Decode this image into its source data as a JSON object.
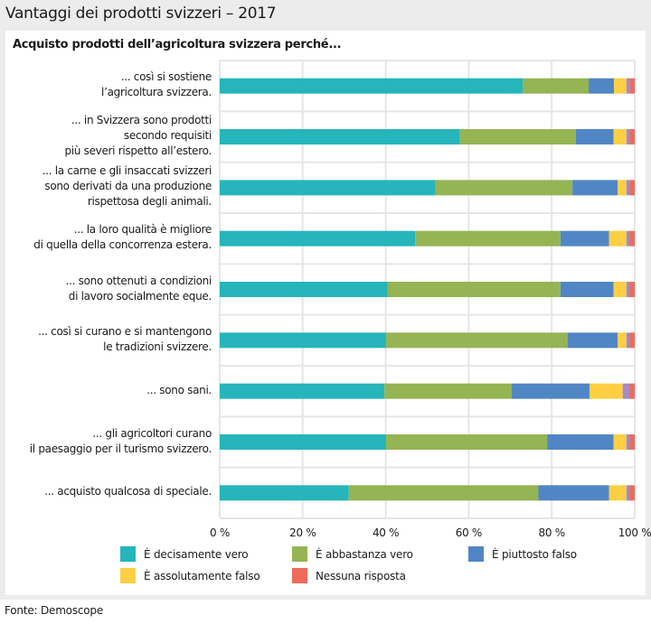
{
  "header": {
    "title": "Vantaggi dei prodotti svizzeri – 2017",
    "subtitle": "Acquisto prodotti dell’agricoltura svizzera perché..."
  },
  "footer": {
    "source": "Fonte: Demoscope"
  },
  "colors": {
    "background": "#ececec",
    "panel": "#ffffff",
    "gridline": "#e6e6e6"
  },
  "chart_data": {
    "type": "bar",
    "orientation": "horizontal",
    "stacked": true,
    "title": "Vantaggi dei prodotti svizzeri – 2017",
    "subtitle": "Acquisto prodotti dell’agricoltura svizzera perché...",
    "xlabel": "",
    "ylabel": "",
    "xlim": [
      0,
      100
    ],
    "xunit": "%",
    "xticks": [
      "0 %",
      "20 %",
      "40 %",
      "60 %",
      "80 %",
      "100 %"
    ],
    "grid": true,
    "legend_position": "bottom",
    "categories": [
      "... così si sostiene\nl’agricoltura svizzera.",
      "... in Svizzera sono prodotti\nsecondo requisiti\npiù severi rispetto all’estero.",
      "... la carne e gli insaccati svizzeri\nsono derivati da una produzione\nrispettosa degli animali.",
      "... la loro qualità è migliore\ndi quella della concorrenza estera.",
      "... sono ottenuti a condizioni\ndi lavoro socialmente eque.",
      "... così si curano e si mantengono\nle tradizioni svizzere.",
      "... sono sani.",
      "... gli agricoltori curano\nil paesaggio per il turismo svizzero.",
      "... acquisto qualcosa di speciale."
    ],
    "series": [
      {
        "name": "È decisamente vero",
        "color": "#26b5ba",
        "in_legend": true,
        "values": [
          73.0,
          57.9,
          52.0,
          47.1,
          40.5,
          40.1,
          39.7,
          40.1,
          31.1
        ]
      },
      {
        "name": "È abbastanza vero",
        "color": "#95b453",
        "in_legend": true,
        "values": [
          15.9,
          27.9,
          33.0,
          35.0,
          41.6,
          43.7,
          30.6,
          38.8,
          45.7
        ]
      },
      {
        "name": "È piuttosto falso",
        "color": "#5186c5",
        "in_legend": true,
        "values": [
          6.1,
          9.1,
          10.9,
          11.7,
          12.8,
          12.1,
          18.8,
          16.0,
          17.0
        ]
      },
      {
        "name": "È assolutamente falso",
        "color": "#fecf44",
        "in_legend": true,
        "values": [
          3.0,
          3.1,
          2.1,
          4.2,
          3.1,
          2.1,
          8.0,
          3.1,
          4.2
        ]
      },
      {
        "name": "",
        "color": "#a68bc6",
        "in_legend": false,
        "values": [
          0.9,
          0.8,
          0.8,
          0.8,
          0.8,
          0.8,
          1.7,
          0.8,
          0.8
        ]
      },
      {
        "name": "Nessuna risposta",
        "color": "#ee6b5c",
        "in_legend": true,
        "values": [
          1.1,
          1.2,
          1.2,
          1.2,
          1.2,
          1.2,
          1.2,
          1.2,
          1.2
        ]
      }
    ]
  }
}
